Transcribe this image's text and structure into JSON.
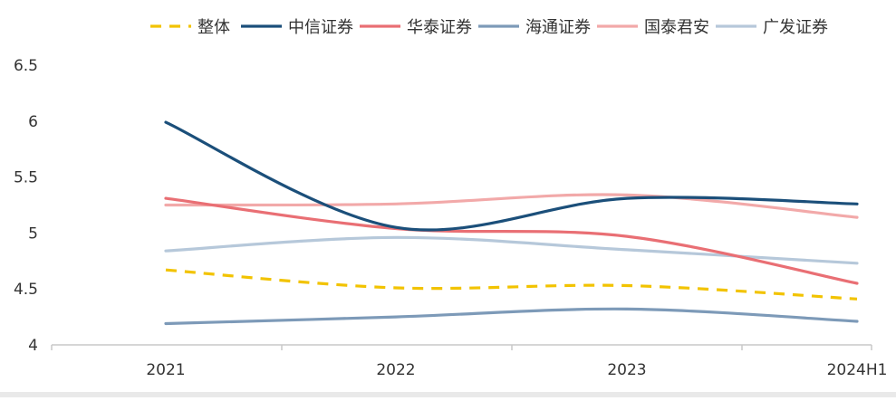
{
  "chart_data": {
    "type": "line",
    "categories": [
      "2021",
      "2022",
      "2023",
      "2024H1"
    ],
    "ylim": [
      4,
      6.5
    ],
    "yticks": [
      "4",
      "4.5",
      "5",
      "5.5",
      "6",
      "6.5"
    ],
    "grid": false,
    "legend_position": "top",
    "series": [
      {
        "name": "整体",
        "color": "#f2c300",
        "style": "dashed",
        "values": [
          4.67,
          4.51,
          4.53,
          4.41
        ]
      },
      {
        "name": "中信证券",
        "color": "#1b4f7a",
        "style": "solid",
        "values": [
          5.99,
          5.05,
          5.31,
          5.26
        ]
      },
      {
        "name": "华泰证券",
        "color": "#e96f74",
        "style": "solid",
        "values": [
          5.31,
          5.04,
          4.97,
          4.55
        ]
      },
      {
        "name": "海通证券",
        "color": "#7d9ab8",
        "style": "solid",
        "values": [
          4.19,
          4.25,
          4.32,
          4.21
        ]
      },
      {
        "name": "国泰君安",
        "color": "#f2a9a9",
        "style": "solid",
        "values": [
          5.25,
          5.26,
          5.34,
          5.14
        ]
      },
      {
        "name": "广发证券",
        "color": "#b6c8da",
        "style": "solid",
        "values": [
          4.84,
          4.96,
          4.85,
          4.73
        ]
      }
    ]
  }
}
